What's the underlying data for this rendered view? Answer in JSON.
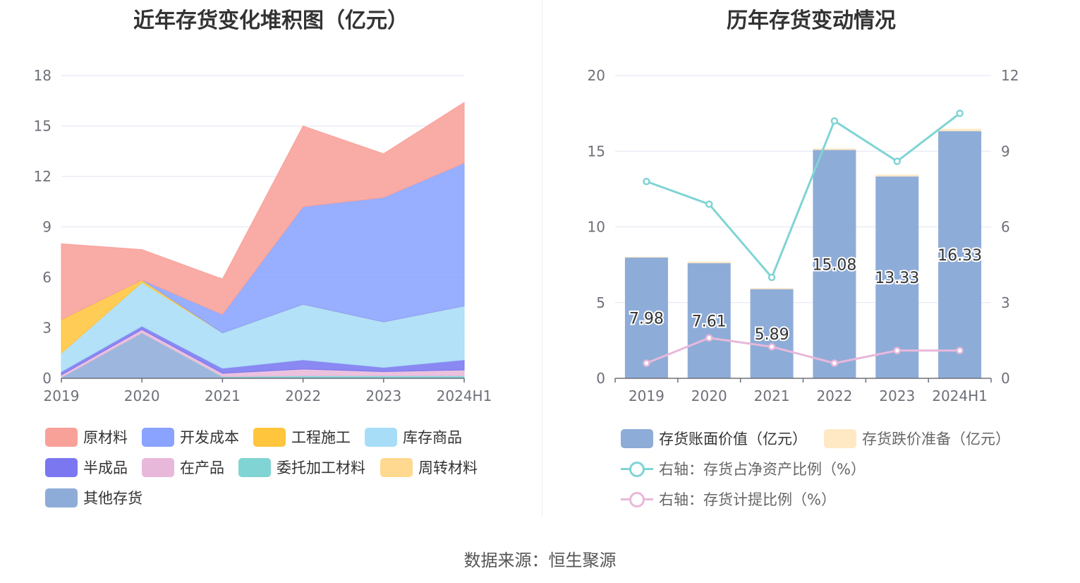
{
  "left_chart": {
    "title": "近年存货变化堆积图（亿元）",
    "legend": [
      {
        "name": "原材料",
        "color": "#f8a199"
      },
      {
        "name": "开发成本",
        "color": "#8aa3ff"
      },
      {
        "name": "工程施工",
        "color": "#ffc53d"
      },
      {
        "name": "库存商品",
        "color": "#a8ddf7"
      },
      {
        "name": "半成品",
        "color": "#7a77f0"
      },
      {
        "name": "在产品",
        "color": "#e8b8da"
      },
      {
        "name": "委托加工材料",
        "color": "#80d4d4"
      },
      {
        "name": "周转材料",
        "color": "#ffd98f"
      },
      {
        "name": "其他存货",
        "color": "#8eacd8"
      }
    ]
  },
  "right_chart": {
    "title": "历年存货变动情况",
    "legend": [
      {
        "name": "存货账面价值（亿元）",
        "color": "#8eacd8",
        "kind": "bar"
      },
      {
        "name": "存货跌价准备（亿元）",
        "color": "#ffe8c4",
        "kind": "bar"
      },
      {
        "name": "右轴：存货占净资产比例（%）",
        "color": "#80d4d4",
        "kind": "line"
      },
      {
        "name": "右轴：存货计提比例（%）",
        "color": "#e8b8da",
        "kind": "line"
      }
    ]
  },
  "source_text": "数据来源：恒生聚源",
  "chart_data": [
    {
      "type": "area",
      "stacked": true,
      "title": "近年存货变化堆积图（亿元）",
      "categories": [
        "2019",
        "2020",
        "2021",
        "2022",
        "2023",
        "2024H1"
      ],
      "ylim": [
        0,
        18
      ],
      "yticks": [
        0,
        3,
        6,
        9,
        12,
        15,
        18
      ],
      "grid": true,
      "legend_position": "bottom",
      "series": [
        {
          "name": "其他存货",
          "color": "#8eacd8",
          "values": [
            0.05,
            2.7,
            0.05,
            0.05,
            0.05,
            0.05
          ]
        },
        {
          "name": "委托加工材料",
          "color": "#80d4d4",
          "values": [
            0.0,
            0.0,
            0.05,
            0.1,
            0.1,
            0.1
          ]
        },
        {
          "name": "在产品",
          "color": "#e8b8da",
          "values": [
            0.15,
            0.2,
            0.2,
            0.4,
            0.25,
            0.35
          ]
        },
        {
          "name": "半成品",
          "color": "#7a77f0",
          "values": [
            0.2,
            0.2,
            0.3,
            0.55,
            0.25,
            0.6
          ]
        },
        {
          "name": "库存商品",
          "color": "#a8ddf7",
          "values": [
            1.1,
            2.6,
            2.1,
            3.3,
            2.7,
            3.2
          ]
        },
        {
          "name": "周转材料",
          "color": "#ffd98f",
          "values": [
            0.0,
            0.0,
            0.0,
            0.0,
            0.0,
            0.0
          ]
        },
        {
          "name": "工程施工",
          "color": "#ffc53d",
          "values": [
            2.0,
            0.15,
            0.0,
            0.0,
            0.0,
            0.0
          ]
        },
        {
          "name": "开发成本",
          "color": "#8aa3ff",
          "values": [
            0.0,
            0.0,
            1.1,
            5.8,
            7.4,
            8.5
          ]
        },
        {
          "name": "原材料",
          "color": "#f8a199",
          "values": [
            4.5,
            1.8,
            2.1,
            4.8,
            2.6,
            3.6
          ]
        }
      ]
    },
    {
      "type": "bar",
      "stacked": true,
      "title": "历年存货变动情况",
      "categories": [
        "2019",
        "2020",
        "2021",
        "2022",
        "2023",
        "2024H1"
      ],
      "ylim": [
        0,
        20
      ],
      "yticks": [
        0,
        5,
        10,
        15,
        20
      ],
      "y2lim": [
        0,
        12
      ],
      "y2ticks": [
        0,
        3,
        6,
        9,
        12
      ],
      "grid": true,
      "legend_position": "bottom",
      "series": [
        {
          "name": "存货账面价值（亿元）",
          "type": "bar",
          "axis": "left",
          "color": "#8eacd8",
          "values": [
            7.98,
            7.61,
            5.89,
            15.08,
            13.33,
            16.33
          ],
          "labels": [
            "7.98",
            "7.61",
            "5.89",
            "15.08",
            "13.33",
            "16.33"
          ]
        },
        {
          "name": "存货跌价准备（亿元）",
          "type": "bar",
          "axis": "left",
          "color": "#ffe8c4",
          "values": [
            0.05,
            0.1,
            0.07,
            0.1,
            0.12,
            0.15
          ]
        },
        {
          "name": "右轴：存货占净资产比例（%）",
          "type": "line",
          "axis": "right",
          "color": "#80d4d4",
          "values": [
            7.8,
            6.9,
            4.0,
            10.2,
            8.6,
            10.5
          ]
        },
        {
          "name": "右轴：存货计提比例（%）",
          "type": "line",
          "axis": "right",
          "color": "#e8b8da",
          "values": [
            0.6,
            1.6,
            1.25,
            0.6,
            1.1,
            1.1
          ]
        }
      ]
    }
  ]
}
